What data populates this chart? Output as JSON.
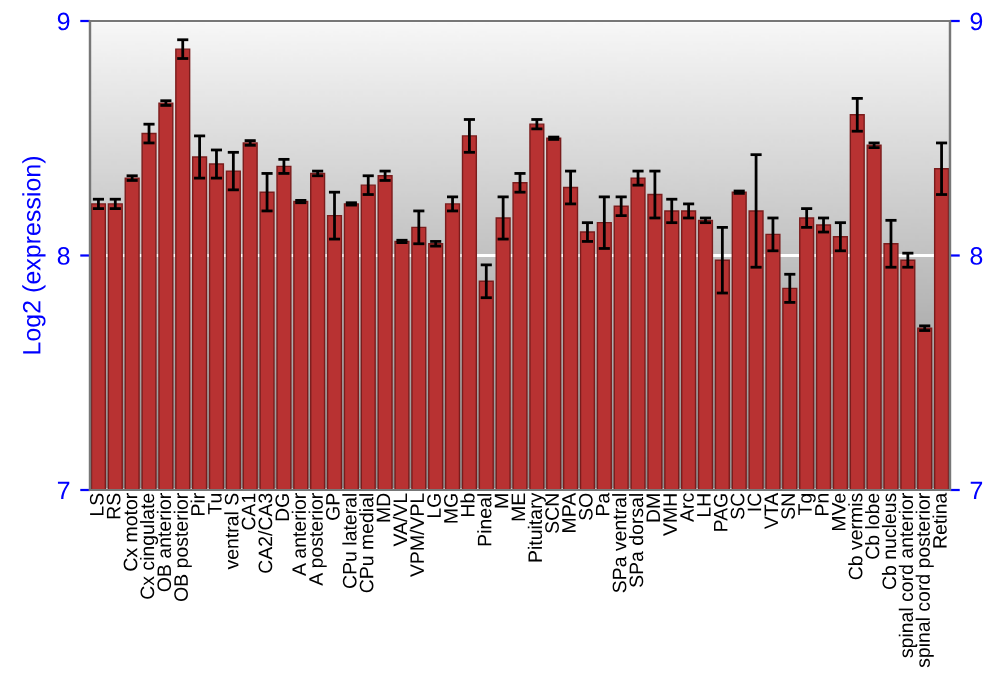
{
  "chart_data": {
    "type": "bar",
    "ylabel": "Log2 (expression)",
    "categories": [
      "LS",
      "RS",
      "Cx motor",
      "Cx cingulate",
      "OB anterior",
      "OB posterior",
      "Pir",
      "Tu",
      "ventral S",
      "CA1",
      "CA2/CA3",
      "DG",
      "A anterior",
      "A posterior",
      "GP",
      "CPu lateral",
      "CPu medial",
      "MD",
      "VA/VL",
      "VPM/VPL",
      "LG",
      "MG",
      "Hb",
      "Pineal",
      "M",
      "ME",
      "Pituitary",
      "SCN",
      "MPA",
      "SO",
      "Pa",
      "SPa ventral",
      "SPa dorsal",
      "DM",
      "VMH",
      "Arc",
      "LH",
      "PAG",
      "SC",
      "IC",
      "VTA",
      "SN",
      "Tg",
      "Pn",
      "MVe",
      "Cb vermis",
      "Cb lobe",
      "Cb nucleus",
      "spinal cord anterior",
      "spinal cord posterior",
      "Retina"
    ],
    "values": [
      8.22,
      8.22,
      8.33,
      8.52,
      8.65,
      8.88,
      8.42,
      8.39,
      8.36,
      8.48,
      8.27,
      8.38,
      8.23,
      8.35,
      8.17,
      8.22,
      8.3,
      8.34,
      8.06,
      8.12,
      8.05,
      8.22,
      8.51,
      7.89,
      8.16,
      8.31,
      8.56,
      8.5,
      8.29,
      8.1,
      8.14,
      8.21,
      8.33,
      8.26,
      8.19,
      8.19,
      8.15,
      7.98,
      8.27,
      8.19,
      8.09,
      7.86,
      8.16,
      8.13,
      8.08,
      8.6,
      8.47,
      8.05,
      7.98,
      7.69,
      8.37
    ],
    "errors": [
      0.02,
      0.02,
      0.01,
      0.04,
      0.01,
      0.04,
      0.09,
      0.06,
      0.08,
      0.01,
      0.08,
      0.03,
      0.005,
      0.01,
      0.1,
      0.005,
      0.04,
      0.02,
      0.005,
      0.07,
      0.01,
      0.03,
      0.07,
      0.07,
      0.09,
      0.04,
      0.02,
      0.005,
      0.07,
      0.04,
      0.11,
      0.04,
      0.03,
      0.1,
      0.05,
      0.03,
      0.01,
      0.14,
      0.005,
      0.24,
      0.07,
      0.06,
      0.04,
      0.03,
      0.06,
      0.07,
      0.01,
      0.1,
      0.03,
      0.01,
      0.11
    ],
    "color": "#b83232",
    "ylim": [
      7,
      9
    ],
    "yticks": [
      7,
      8,
      9
    ],
    "y2lim": [
      7,
      9
    ],
    "y2ticks": [
      7,
      8,
      9
    ],
    "grid": "y"
  }
}
